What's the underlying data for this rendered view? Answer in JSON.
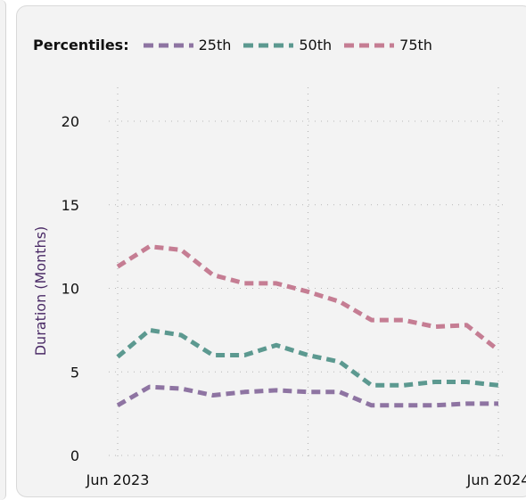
{
  "colors": {
    "p25": "#8e74a2",
    "p50": "#5c9990",
    "p75": "#c57d93",
    "grid": "#b8b8b8",
    "axis_title": "#4a2a66"
  },
  "legend": {
    "title": "Percentiles:"
  },
  "chart_data": {
    "type": "line",
    "ylabel": "Duration (Months)",
    "xlabel": "",
    "ylim": [
      0,
      20
    ],
    "yticks": [
      0,
      5,
      10,
      15,
      20
    ],
    "x": [
      "2023-06",
      "2023-07",
      "2023-08",
      "2023-09",
      "2023-10",
      "2023-11",
      "2023-12",
      "2024-01",
      "2024-02",
      "2024-03",
      "2024-04",
      "2024-05",
      "2024-06"
    ],
    "xtick_labels": [
      {
        "x": "2023-06",
        "label": "Jun 2023"
      },
      {
        "x": "2024-06",
        "label": "Jun 2024"
      }
    ],
    "legend_position": "top-left",
    "grid": true,
    "series": [
      {
        "name": "25th",
        "key": "p25",
        "values": [
          3.0,
          4.1,
          4.0,
          3.6,
          3.8,
          3.9,
          3.8,
          3.8,
          3.0,
          3.0,
          3.0,
          3.1,
          3.1
        ]
      },
      {
        "name": "50th",
        "key": "p50",
        "values": [
          5.9,
          7.5,
          7.2,
          6.0,
          6.0,
          6.6,
          6.0,
          5.6,
          4.2,
          4.2,
          4.4,
          4.4,
          4.2
        ]
      },
      {
        "name": "75th",
        "key": "p75",
        "values": [
          11.3,
          12.5,
          12.3,
          10.8,
          10.3,
          10.3,
          9.8,
          9.2,
          8.1,
          8.1,
          7.7,
          7.8,
          6.3
        ]
      }
    ]
  }
}
